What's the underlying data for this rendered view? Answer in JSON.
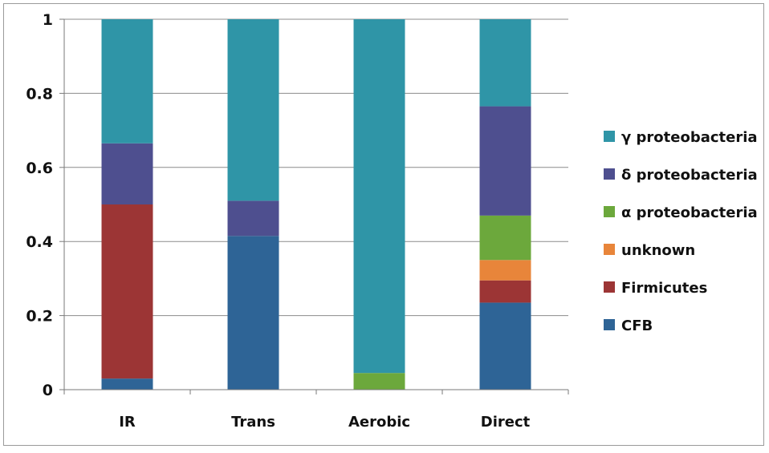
{
  "chart_data": {
    "type": "bar",
    "stacked": true,
    "categories": [
      "IR",
      "Trans",
      "Aerobic",
      "Direct"
    ],
    "series": [
      {
        "name": "CFB",
        "color": "#2e6496",
        "values": [
          0.03,
          0.415,
          0.0,
          0.235
        ]
      },
      {
        "name": "Firmicutes",
        "color": "#9c3535",
        "values": [
          0.47,
          0.0,
          0.0,
          0.06
        ]
      },
      {
        "name": "unknown",
        "color": "#e8853a",
        "values": [
          0.0,
          0.0,
          0.0,
          0.055
        ]
      },
      {
        "name": "α proteobacteria",
        "color": "#6ca83c",
        "values": [
          0.0,
          0.0,
          0.045,
          0.12
        ]
      },
      {
        "name": "δ proteobacteria",
        "color": "#4e4f8f",
        "values": [
          0.165,
          0.095,
          0.0,
          0.295
        ]
      },
      {
        "name": "γ proteobacteria",
        "color": "#2f95a7",
        "values": [
          0.335,
          0.49,
          0.955,
          0.235
        ]
      }
    ],
    "ylim": [
      0,
      1
    ],
    "yticks": [
      {
        "value": 0,
        "label": "0"
      },
      {
        "value": 0.2,
        "label": "0.2"
      },
      {
        "value": 0.4,
        "label": "0.4"
      },
      {
        "value": 0.6,
        "label": "0.6"
      },
      {
        "value": 0.8,
        "label": "0.8"
      },
      {
        "value": 1,
        "label": "1"
      }
    ],
    "grid": true,
    "legend": "right",
    "legend_order": [
      "γ proteobacteria",
      "δ proteobacteria",
      "α proteobacteria",
      "unknown",
      "Firmicutes",
      "CFB"
    ]
  }
}
